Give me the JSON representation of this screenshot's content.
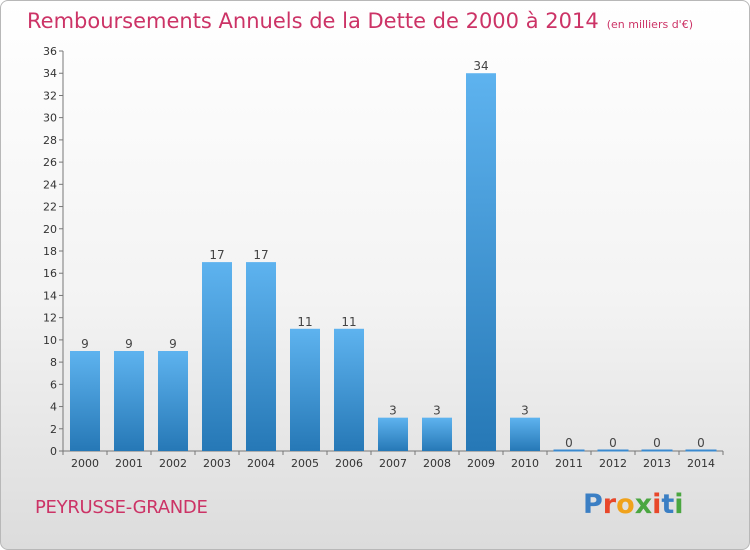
{
  "title": "Remboursements Annuels de la Dette de 2000 à 2014",
  "unit_note": "(en milliers d'€)",
  "commune": "PEYRUSSE-GRANDE",
  "logo": {
    "text": "Proxiti",
    "letter_colors": [
      "#3b7fc4",
      "#e8472a",
      "#f0a21b",
      "#4aa640",
      "#e8472a",
      "#3b7fc4",
      "#4aa640"
    ]
  },
  "colors": {
    "accent": "#cc3366",
    "bar_top": "#5eb3ef",
    "bar_bottom": "#2678b6"
  },
  "chart_data": {
    "type": "bar",
    "title": "Remboursements Annuels de la Dette de 2000 à 2014",
    "categories": [
      "2000",
      "2001",
      "2002",
      "2003",
      "2004",
      "2005",
      "2006",
      "2007",
      "2008",
      "2009",
      "2010",
      "2011",
      "2012",
      "2013",
      "2014"
    ],
    "values": [
      9,
      9,
      9,
      17,
      17,
      11,
      11,
      3,
      3,
      34,
      3,
      0,
      0,
      0,
      0
    ],
    "ylim": [
      0,
      36
    ],
    "yticks": [
      0,
      2,
      4,
      6,
      8,
      10,
      12,
      14,
      16,
      18,
      20,
      22,
      24,
      26,
      28,
      30,
      32,
      34,
      36
    ],
    "xlabel": "",
    "ylabel": "",
    "grid": false,
    "data_labels": true
  }
}
